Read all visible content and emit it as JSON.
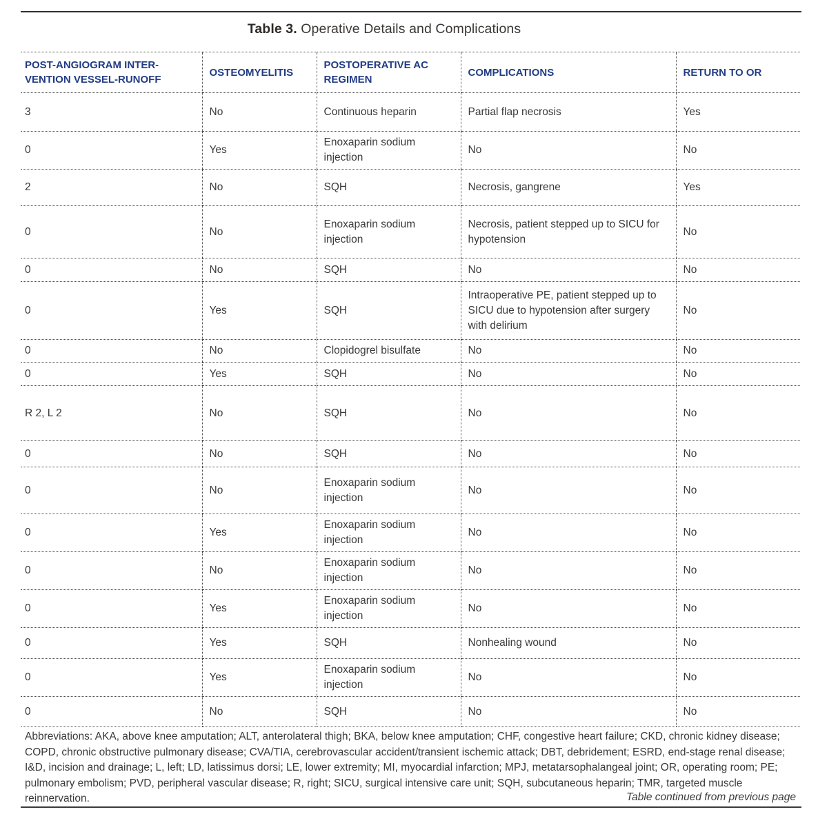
{
  "colors": {
    "header_text": "#223c85",
    "body_text": "#3a3a3c",
    "rule": "#2f2f31",
    "dotted_border": "#4b4b4b",
    "background": "#ffffff"
  },
  "title": {
    "prefix": "Table 3.",
    "text": " Operative Details and Complications"
  },
  "table": {
    "columns": [
      {
        "key": "runoff",
        "label": "POST-ANGIOGRAM INTER-\nVENTION VESSEL-RUNOFF"
      },
      {
        "key": "osteomyelitis",
        "label": "OSTEOMYELITIS"
      },
      {
        "key": "ac_regimen",
        "label": "POSTOPERATIVE AC\nREGIMEN"
      },
      {
        "key": "complications",
        "label": "COMPLICATIONS"
      },
      {
        "key": "return_to_or",
        "label": "RETURN TO OR"
      }
    ],
    "rows": [
      {
        "runoff": "3",
        "osteomyelitis": "No",
        "ac_regimen": "Continuous heparin",
        "complications": "Partial flap necrosis",
        "return_to_or": "Yes"
      },
      {
        "runoff": "0",
        "osteomyelitis": "Yes",
        "ac_regimen": "Enoxaparin sodium injection",
        "complications": "No",
        "return_to_or": "No"
      },
      {
        "runoff": "2",
        "osteomyelitis": "No",
        "ac_regimen": "SQH",
        "complications": "Necrosis, gangrene",
        "return_to_or": "Yes"
      },
      {
        "runoff": "0",
        "osteomyelitis": "No",
        "ac_regimen": "Enoxaparin sodium injection",
        "complications": "Necrosis, patient stepped up to SICU for hypotension",
        "return_to_or": "No"
      },
      {
        "runoff": "0",
        "osteomyelitis": "No",
        "ac_regimen": "SQH",
        "complications": "No",
        "return_to_or": "No"
      },
      {
        "runoff": "0",
        "osteomyelitis": "Yes",
        "ac_regimen": "SQH",
        "complications": "Intraoperative PE, patient stepped up to SICU due to hypotension after surgery with delirium",
        "return_to_or": "No"
      },
      {
        "runoff": "0",
        "osteomyelitis": "No",
        "ac_regimen": "Clopidogrel bisulfate",
        "complications": "No",
        "return_to_or": "No"
      },
      {
        "runoff": "0",
        "osteomyelitis": "Yes",
        "ac_regimen": "SQH",
        "complications": "No",
        "return_to_or": "No"
      },
      {
        "runoff": "R 2, L 2",
        "osteomyelitis": "No",
        "ac_regimen": "SQH",
        "complications": "No",
        "return_to_or": "No"
      },
      {
        "runoff": "0",
        "osteomyelitis": "No",
        "ac_regimen": "SQH",
        "complications": "No",
        "return_to_or": "No"
      },
      {
        "runoff": "0",
        "osteomyelitis": "No",
        "ac_regimen": "Enoxaparin sodium injection",
        "complications": "No",
        "return_to_or": "No"
      },
      {
        "runoff": "0",
        "osteomyelitis": "Yes",
        "ac_regimen": "Enoxaparin sodium injection",
        "complications": "No",
        "return_to_or": "No"
      },
      {
        "runoff": "0",
        "osteomyelitis": "No",
        "ac_regimen": "Enoxaparin sodium injection",
        "complications": "No",
        "return_to_or": "No"
      },
      {
        "runoff": "0",
        "osteomyelitis": "Yes",
        "ac_regimen": "Enoxaparin sodium injection",
        "complications": "No",
        "return_to_or": "No"
      },
      {
        "runoff": "0",
        "osteomyelitis": "Yes",
        "ac_regimen": "SQH",
        "complications": "Nonhealing wound",
        "return_to_or": "No"
      },
      {
        "runoff": "0",
        "osteomyelitis": "Yes",
        "ac_regimen": "Enoxaparin sodium injection",
        "complications": "No",
        "return_to_or": "No"
      },
      {
        "runoff": "0",
        "osteomyelitis": "No",
        "ac_regimen": "SQH",
        "complications": "No",
        "return_to_or": "No"
      }
    ]
  },
  "footer": {
    "abbreviations": "Abbreviations: AKA, above knee amputation; ALT, anterolateral thigh; BKA, below knee amputation; CHF, congestive heart failure; CKD, chronic kidney disease; COPD, chronic obstructive pulmonary disease; CVA/TIA, cerebrovascular accident/transient ischemic attack; DBT, debridement; ESRD, end-stage renal disease; I&D, incision and drainage; L, left; LD, latissimus dorsi; LE, lower extremity; MI, myocardial infarction; MPJ, metatarsophalangeal joint; OR, operating room; PE; pulmonary embolism; PVD, peripheral vascular disease; R, right; SICU, surgical intensive care unit; SQH, subcutaneous heparin; TMR, targeted muscle reinnervation.",
    "continuation_note": "Table continued from previous page"
  }
}
